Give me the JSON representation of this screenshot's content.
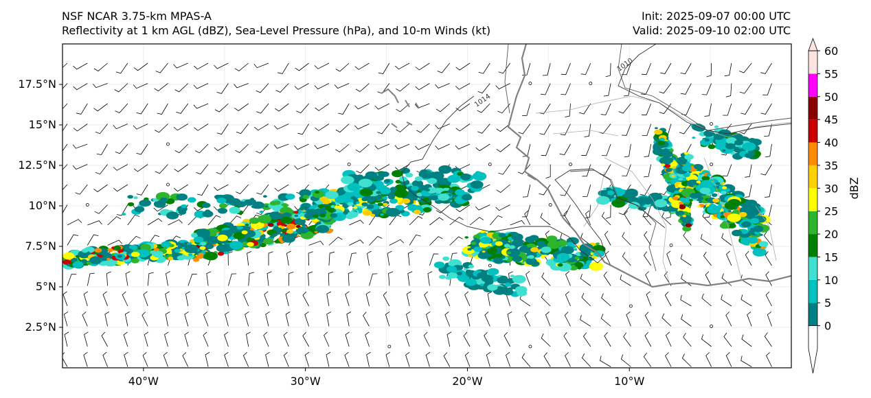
{
  "header": {
    "model_name": "NSF NCAR 3.75-km MPAS-A",
    "subtitle": "Reflectivity at 1 km AGL (dBZ), Sea-Level Pressure (hPa), and 10-m Winds (kt)",
    "init_time": "Init: 2025-09-07 00:00 UTC",
    "valid_time": "Valid: 2025-09-10 02:00 UTC"
  },
  "map": {
    "lon_range": [
      -45,
      0
    ],
    "lat_range": [
      0,
      20
    ],
    "lat_ticks": [
      {
        "value": 17.5,
        "label": "17.5°N"
      },
      {
        "value": 15,
        "label": "15°N"
      },
      {
        "value": 12.5,
        "label": "12.5°N"
      },
      {
        "value": 10,
        "label": "10°N"
      },
      {
        "value": 7.5,
        "label": "7.5°N"
      },
      {
        "value": 5,
        "label": "5°N"
      },
      {
        "value": 2.5,
        "label": "2.5°N"
      }
    ],
    "lon_ticks": [
      {
        "value": -40,
        "label": "40°W"
      },
      {
        "value": -30,
        "label": "30°W"
      },
      {
        "value": -20,
        "label": "20°W"
      },
      {
        "value": -10,
        "label": "10°W"
      }
    ],
    "isobar_labels": [
      {
        "text": "1014",
        "lon": -19.0,
        "lat": 16.4
      },
      {
        "text": "1010",
        "lon": -10.2,
        "lat": 18.6
      }
    ]
  },
  "colorbar": {
    "label": "dBZ",
    "ticks": [
      "0",
      "5",
      "10",
      "15",
      "20",
      "25",
      "30",
      "35",
      "40",
      "45",
      "50",
      "55",
      "60"
    ],
    "colors": [
      "#008080",
      "#00c0c0",
      "#40e0d0",
      "#008000",
      "#2db52d",
      "#ffff00",
      "#ffd000",
      "#ff8c00",
      "#cc0000",
      "#8b0000",
      "#ff00ff",
      "#ffe4e1"
    ],
    "extend": "both"
  },
  "colors": {
    "frame": "#000000",
    "coastline": "#808080",
    "border": "#aaaaaa",
    "isobar": "#333333",
    "barb": "#000000"
  }
}
